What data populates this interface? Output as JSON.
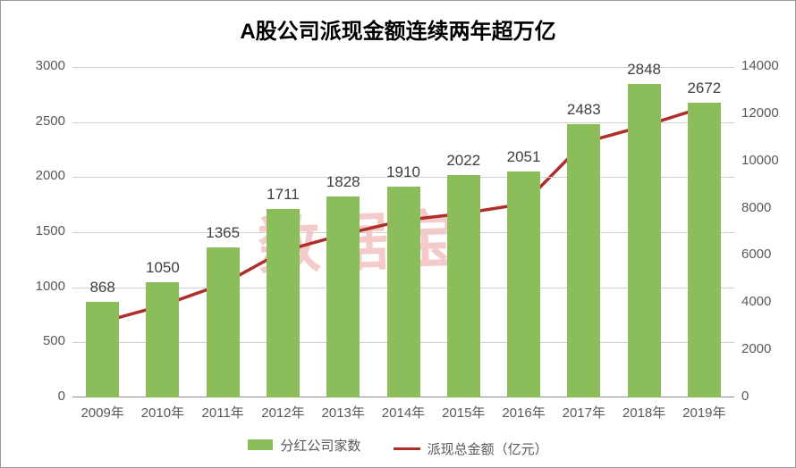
{
  "title": {
    "text": "A股公司派现金额连续两年超万亿",
    "fontsize": 24,
    "color": "#000000"
  },
  "background_color": "#ffffff",
  "grid_color": "#d0d0d0",
  "axis_color": "#888888",
  "tick_label_color": "#595959",
  "tick_fontsize": 15,
  "bar_label_fontsize": 17,
  "bar_label_color": "#404040",
  "categories": [
    "2009年",
    "2010年",
    "2011年",
    "2012年",
    "2013年",
    "2014年",
    "2015年",
    "2016年",
    "2017年",
    "2018年",
    "2019年"
  ],
  "bars": {
    "name": "分红公司家数",
    "values": [
      868,
      1050,
      1365,
      1711,
      1828,
      1910,
      2022,
      2051,
      2483,
      2848,
      2672
    ],
    "color": "#8bbe5a",
    "width_fraction": 0.55
  },
  "line": {
    "name": "派现总金额（亿元）",
    "values": [
      3200,
      3900,
      4800,
      6200,
      6900,
      7500,
      7800,
      8200,
      10800,
      11500,
      12300
    ],
    "color": "#b02e2a",
    "width": 3.5
  },
  "y_left": {
    "min": 0,
    "max": 3000,
    "step": 500
  },
  "y_right": {
    "min": 0,
    "max": 14000,
    "step": 2000
  },
  "legend": {
    "fontsize": 15,
    "items": [
      {
        "kind": "bar",
        "label_key": "bars.name",
        "color_key": "bars.color"
      },
      {
        "kind": "line",
        "label_key": "line.name",
        "color_key": "line.color"
      }
    ]
  },
  "watermark": {
    "text": "数据宝",
    "color": "#e46a6a",
    "fontsize": 70
  }
}
